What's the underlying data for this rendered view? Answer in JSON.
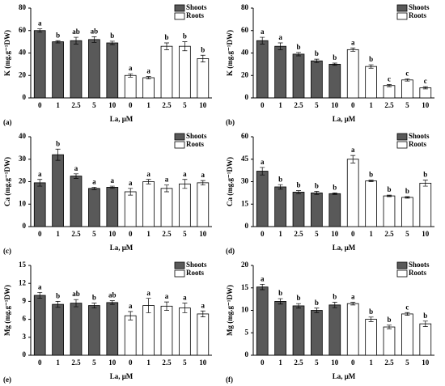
{
  "chart_data": [
    {
      "type": "bar",
      "panel": "(a)",
      "xlabel": "La, μM",
      "ylabel": "K (mg.g⁻¹DW)",
      "categories": [
        "0",
        "1",
        "2.5",
        "5",
        "10",
        "0",
        "1",
        "2.5",
        "5",
        "10"
      ],
      "series": [
        {
          "name": "Shoots",
          "color": "#595959",
          "values": [
            60,
            50,
            51,
            52,
            49,
            null,
            null,
            null,
            null,
            null
          ],
          "errors": [
            1.5,
            1,
            3,
            2.5,
            1.5,
            null,
            null,
            null,
            null,
            null
          ],
          "letters": [
            "a",
            "b",
            "ab",
            "ab",
            "b",
            null,
            null,
            null,
            null,
            null
          ]
        },
        {
          "name": "Roots",
          "color": "#ffffff",
          "values": [
            null,
            null,
            null,
            null,
            null,
            20,
            18,
            46,
            46,
            35
          ],
          "errors": [
            null,
            null,
            null,
            null,
            null,
            1.5,
            1,
            3,
            4,
            3
          ],
          "letters": [
            null,
            null,
            null,
            null,
            null,
            "a",
            "a",
            "b",
            "b",
            "b"
          ]
        }
      ],
      "ylim": [
        0,
        80
      ],
      "yticks": [
        0,
        20,
        40,
        60,
        80
      ],
      "legend": "top-right"
    },
    {
      "type": "bar",
      "panel": "(b)",
      "xlabel": "La, μM",
      "ylabel": "K (mg.g⁻¹DW)",
      "categories": [
        "0",
        "1",
        "2.5",
        "5",
        "10",
        "0",
        "1",
        "2.5",
        "5",
        "10"
      ],
      "series": [
        {
          "name": "Shoots",
          "color": "#595959",
          "values": [
            51,
            46,
            39,
            33,
            30,
            null,
            null,
            null,
            null,
            null
          ],
          "errors": [
            3,
            3,
            1.5,
            1.5,
            1,
            null,
            null,
            null,
            null,
            null
          ],
          "letters": [
            "a",
            "a",
            "b",
            "b",
            "b",
            null,
            null,
            null,
            null,
            null
          ]
        },
        {
          "name": "Roots",
          "color": "#ffffff",
          "values": [
            null,
            null,
            null,
            null,
            null,
            43,
            28,
            11,
            16,
            9
          ],
          "errors": [
            null,
            null,
            null,
            null,
            null,
            1.5,
            1.5,
            1,
            1,
            1
          ],
          "letters": [
            null,
            null,
            null,
            null,
            null,
            "a",
            "b",
            "c",
            "c",
            "c"
          ]
        }
      ],
      "ylim": [
        0,
        80
      ],
      "yticks": [
        0,
        20,
        40,
        60,
        80
      ],
      "legend": "top-right"
    },
    {
      "type": "bar",
      "panel": "(c)",
      "xlabel": "La, μM",
      "ylabel": "Ca (mg.g⁻¹DW)",
      "categories": [
        "0",
        "1",
        "2.5",
        "5",
        "10",
        "0",
        "1",
        "2.5",
        "5",
        "10"
      ],
      "series": [
        {
          "name": "Shoots",
          "color": "#595959",
          "values": [
            19.5,
            32,
            22.5,
            17,
            17.5,
            null,
            null,
            null,
            null,
            null
          ],
          "errors": [
            1.5,
            2.5,
            1,
            0.5,
            0.5,
            null,
            null,
            null,
            null,
            null
          ],
          "letters": [
            "a",
            "b",
            "a",
            "a",
            "a",
            null,
            null,
            null,
            null,
            null
          ]
        },
        {
          "name": "Roots",
          "color": "#ffffff",
          "values": [
            null,
            null,
            null,
            null,
            null,
            15.5,
            20,
            17,
            19,
            19.5
          ],
          "errors": [
            null,
            null,
            null,
            null,
            null,
            1.5,
            1,
            1.5,
            2,
            1
          ],
          "letters": [
            null,
            null,
            null,
            null,
            null,
            "a",
            "a",
            "a",
            "a",
            "a"
          ]
        }
      ],
      "ylim": [
        0,
        40
      ],
      "yticks": [
        0,
        10,
        20,
        30,
        40
      ],
      "legend": "top-right"
    },
    {
      "type": "bar",
      "panel": "(d)",
      "xlabel": "La, μM",
      "ylabel": "Ca (mg.g⁻¹DW)",
      "categories": [
        "0",
        "1",
        "2.5",
        "5",
        "10",
        "0",
        "1",
        "2.5",
        "5",
        "10"
      ],
      "series": [
        {
          "name": "Shoots",
          "color": "#595959",
          "values": [
            37,
            26.5,
            23,
            22.5,
            22,
            null,
            null,
            null,
            null,
            null
          ],
          "errors": [
            2.5,
            1.5,
            1,
            1,
            0.5,
            null,
            null,
            null,
            null,
            null
          ],
          "letters": [
            "a",
            "b",
            "b",
            "b",
            "b",
            null,
            null,
            null,
            null,
            null
          ]
        },
        {
          "name": "Roots",
          "color": "#ffffff",
          "values": [
            null,
            null,
            null,
            null,
            null,
            45,
            30.5,
            20.5,
            19.5,
            29
          ],
          "errors": [
            null,
            null,
            null,
            null,
            null,
            2.5,
            0.5,
            0.5,
            0.5,
            2
          ],
          "letters": [
            null,
            null,
            null,
            null,
            null,
            "a",
            "b",
            "b",
            "b",
            "b"
          ]
        }
      ],
      "ylim": [
        0,
        60
      ],
      "yticks": [
        0,
        15,
        30,
        45,
        60
      ],
      "legend": "top-right"
    },
    {
      "type": "bar",
      "panel": "(e)",
      "xlabel": "La, μM",
      "ylabel": "Mg (mg.g⁻¹DW)",
      "categories": [
        "0",
        "1",
        "2.5",
        "5",
        "10",
        "0",
        "1",
        "2.5",
        "5",
        "10"
      ],
      "series": [
        {
          "name": "Shoots",
          "color": "#595959",
          "values": [
            10,
            8.5,
            8.7,
            8.3,
            8.8,
            null,
            null,
            null,
            null,
            null
          ],
          "errors": [
            0.5,
            0.5,
            0.6,
            0.4,
            0.3,
            null,
            null,
            null,
            null,
            null
          ],
          "letters": [
            "a",
            "b",
            "ab",
            "b",
            "ab",
            null,
            null,
            null,
            null,
            null
          ]
        },
        {
          "name": "Roots",
          "color": "#ffffff",
          "values": [
            null,
            null,
            null,
            null,
            null,
            6.6,
            8.3,
            8.2,
            7.9,
            6.9
          ],
          "errors": [
            null,
            null,
            null,
            null,
            null,
            0.7,
            1.2,
            0.7,
            0.8,
            0.5
          ],
          "letters": [
            null,
            null,
            null,
            null,
            null,
            "a",
            "a",
            "a",
            "a",
            "a"
          ]
        }
      ],
      "ylim": [
        0,
        15
      ],
      "yticks": [
        0,
        3,
        6,
        9,
        12,
        15
      ],
      "legend": "top-right"
    },
    {
      "type": "bar",
      "panel": "(f)",
      "xlabel": "La, μM",
      "ylabel": "Mg (mg.g⁻¹DW)",
      "categories": [
        "0",
        "1",
        "2.5",
        "5",
        "10",
        "0",
        "1",
        "2.5",
        "5",
        "10"
      ],
      "series": [
        {
          "name": "Shoots",
          "color": "#595959",
          "values": [
            15.2,
            12,
            11,
            10,
            11.2,
            null,
            null,
            null,
            null,
            null
          ],
          "errors": [
            0.6,
            0.6,
            0.5,
            0.5,
            0.6,
            null,
            null,
            null,
            null,
            null
          ],
          "letters": [
            "a",
            "b",
            "b",
            "b",
            "b",
            null,
            null,
            null,
            null,
            null
          ]
        },
        {
          "name": "Roots",
          "color": "#ffffff",
          "values": [
            null,
            null,
            null,
            null,
            null,
            11.5,
            8,
            6.3,
            9.2,
            7
          ],
          "errors": [
            null,
            null,
            null,
            null,
            null,
            0.3,
            0.5,
            0.4,
            0.3,
            0.6
          ],
          "letters": [
            null,
            null,
            null,
            null,
            null,
            "a",
            "b",
            "b",
            "c",
            "b"
          ]
        }
      ],
      "ylim": [
        0,
        20
      ],
      "yticks": [
        0,
        5,
        10,
        15,
        20
      ],
      "legend": "top-right"
    }
  ]
}
